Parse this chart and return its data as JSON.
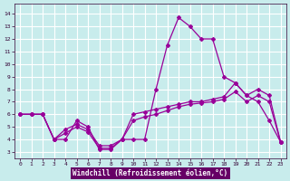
{
  "xlabel": "Windchill (Refroidissement éolien,°C)",
  "background_color": "#c8ecec",
  "grid_color": "#ffffff",
  "line_color": "#990099",
  "x_ticks": [
    0,
    1,
    2,
    3,
    4,
    5,
    6,
    7,
    8,
    9,
    10,
    11,
    12,
    13,
    14,
    15,
    16,
    17,
    18,
    19,
    20,
    21,
    22,
    23
  ],
  "y_ticks": [
    3,
    4,
    5,
    6,
    7,
    8,
    9,
    10,
    11,
    12,
    13,
    14
  ],
  "ylim": [
    2.5,
    14.8
  ],
  "xlim": [
    -0.5,
    23.5
  ],
  "line1_x": [
    0,
    1,
    2,
    3,
    4,
    5,
    6,
    7,
    8,
    9,
    10,
    11,
    12,
    13,
    14,
    15,
    16,
    17,
    18,
    19,
    20,
    21,
    22,
    23
  ],
  "line1_y": [
    6,
    6,
    6,
    4,
    4,
    5.5,
    5,
    3.2,
    3.2,
    4,
    4,
    4,
    8,
    11.5,
    13.7,
    13,
    12,
    12,
    9,
    8.5,
    7.5,
    7,
    5.5,
    3.8
  ],
  "line2_x": [
    0,
    1,
    2,
    3,
    4,
    5,
    6,
    7,
    8,
    9,
    10,
    11,
    12,
    13,
    14,
    15,
    16,
    17,
    18,
    19,
    20,
    21,
    22,
    23
  ],
  "line2_y": [
    6,
    6,
    6,
    4,
    4.8,
    5.2,
    4.8,
    3.5,
    3.5,
    4,
    6,
    6.2,
    6.4,
    6.6,
    6.8,
    7.0,
    7.0,
    7.2,
    7.4,
    8.5,
    7.5,
    8.0,
    7.5,
    3.8
  ],
  "line3_x": [
    0,
    1,
    2,
    3,
    4,
    5,
    6,
    7,
    8,
    9,
    10,
    11,
    12,
    13,
    14,
    15,
    16,
    17,
    18,
    19,
    20,
    21,
    22,
    23
  ],
  "line3_y": [
    6,
    6,
    6,
    4,
    4.5,
    5.0,
    4.6,
    3.3,
    3.3,
    4.0,
    5.5,
    5.8,
    6.0,
    6.3,
    6.6,
    6.8,
    6.9,
    7.0,
    7.2,
    7.8,
    7.0,
    7.5,
    7.0,
    3.8
  ]
}
